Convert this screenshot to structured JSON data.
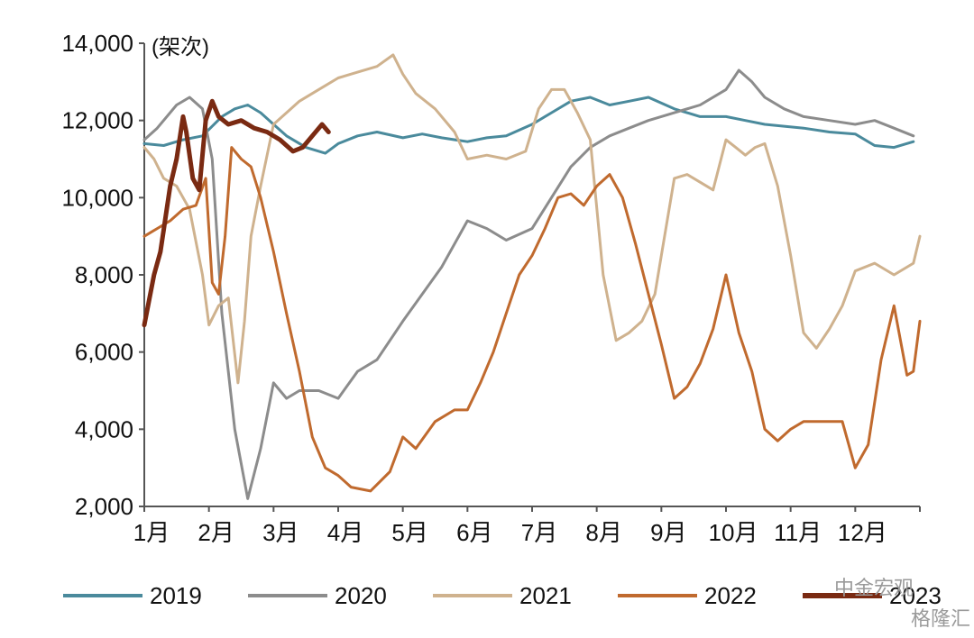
{
  "chart_data": {
    "type": "line",
    "ylabel": "(架次)",
    "ylim": [
      2000,
      14000
    ],
    "yticks": [
      "2,000",
      "4,000",
      "6,000",
      "8,000",
      "10,000",
      "12,000",
      "14,000"
    ],
    "ytick_values": [
      2000,
      4000,
      6000,
      8000,
      10000,
      12000,
      14000
    ],
    "xticks": [
      "1月",
      "2月",
      "3月",
      "4月",
      "5月",
      "6月",
      "7月",
      "8月",
      "9月",
      "10月",
      "11月",
      "12月"
    ],
    "x_unit": "month",
    "xlim": [
      1,
      13
    ],
    "grid": false,
    "legend_position": "bottom",
    "series": [
      {
        "name": "2019",
        "color": "#4a8a9c",
        "width": 3,
        "x": [
          1.0,
          1.3,
          1.6,
          1.9,
          2.2,
          2.4,
          2.6,
          2.8,
          3.0,
          3.2,
          3.5,
          3.8,
          4.0,
          4.3,
          4.6,
          5.0,
          5.3,
          5.6,
          6.0,
          6.3,
          6.6,
          7.0,
          7.3,
          7.6,
          7.9,
          8.2,
          8.5,
          8.8,
          9.2,
          9.6,
          10.0,
          10.3,
          10.6,
          10.9,
          11.2,
          11.6,
          12.0,
          12.3,
          12.6,
          12.9
        ],
        "y": [
          11400,
          11350,
          11500,
          11600,
          12100,
          12300,
          12400,
          12200,
          11900,
          11600,
          11300,
          11150,
          11400,
          11600,
          11700,
          11550,
          11650,
          11550,
          11450,
          11550,
          11600,
          11900,
          12200,
          12500,
          12600,
          12400,
          12500,
          12600,
          12300,
          12100,
          12100,
          12000,
          11900,
          11850,
          11800,
          11700,
          11650,
          11350,
          11300,
          11450
        ]
      },
      {
        "name": "2020",
        "color": "#8c8c8c",
        "width": 3,
        "x": [
          1.0,
          1.2,
          1.5,
          1.7,
          1.9,
          2.05,
          2.2,
          2.4,
          2.6,
          2.8,
          3.0,
          3.2,
          3.4,
          3.7,
          4.0,
          4.3,
          4.6,
          5.0,
          5.3,
          5.6,
          6.0,
          6.3,
          6.6,
          7.0,
          7.3,
          7.6,
          7.9,
          8.2,
          8.5,
          8.8,
          9.2,
          9.6,
          10.0,
          10.2,
          10.4,
          10.6,
          10.9,
          11.2,
          11.6,
          12.0,
          12.3,
          12.6,
          12.9
        ],
        "y": [
          11500,
          11800,
          12400,
          12600,
          12300,
          11000,
          7000,
          4000,
          2200,
          3500,
          5200,
          4800,
          5000,
          5000,
          4800,
          5500,
          5800,
          6800,
          7500,
          8200,
          9400,
          9200,
          8900,
          9200,
          10000,
          10800,
          11300,
          11600,
          11800,
          12000,
          12200,
          12400,
          12800,
          13300,
          13000,
          12600,
          12300,
          12100,
          12000,
          11900,
          12000,
          11800,
          11600
        ]
      },
      {
        "name": "2021",
        "color": "#cfb28e",
        "width": 3,
        "x": [
          1.0,
          1.15,
          1.3,
          1.5,
          1.7,
          1.9,
          2.0,
          2.15,
          2.3,
          2.45,
          2.55,
          2.65,
          2.8,
          3.0,
          3.2,
          3.4,
          3.6,
          3.8,
          4.0,
          4.3,
          4.6,
          4.85,
          5.0,
          5.2,
          5.5,
          5.8,
          6.0,
          6.3,
          6.6,
          6.9,
          7.1,
          7.3,
          7.5,
          7.7,
          7.9,
          8.1,
          8.3,
          8.5,
          8.7,
          8.9,
          9.0,
          9.2,
          9.4,
          9.6,
          9.8,
          10.0,
          10.15,
          10.3,
          10.45,
          10.6,
          10.8,
          11.0,
          11.2,
          11.4,
          11.6,
          11.8,
          12.0,
          12.3,
          12.6,
          12.9,
          13.0
        ],
        "y": [
          11300,
          11000,
          10500,
          10300,
          9700,
          8000,
          6700,
          7200,
          7400,
          5200,
          6800,
          9000,
          10300,
          11900,
          12200,
          12500,
          12700,
          12900,
          13100,
          13250,
          13400,
          13700,
          13200,
          12700,
          12300,
          11700,
          11000,
          11100,
          11000,
          11200,
          12300,
          12800,
          12800,
          12200,
          11500,
          8000,
          6300,
          6500,
          6800,
          7500,
          8500,
          10500,
          10600,
          10400,
          10200,
          11500,
          11300,
          11100,
          11300,
          11400,
          10300,
          8500,
          6500,
          6100,
          6600,
          7200,
          8100,
          8300,
          8000,
          8300,
          9000
        ]
      },
      {
        "name": "2022",
        "color": "#c06a2e",
        "width": 3,
        "x": [
          1.0,
          1.2,
          1.4,
          1.6,
          1.8,
          1.95,
          2.05,
          2.15,
          2.25,
          2.35,
          2.5,
          2.65,
          2.8,
          3.0,
          3.2,
          3.4,
          3.6,
          3.8,
          4.0,
          4.2,
          4.5,
          4.8,
          5.0,
          5.2,
          5.5,
          5.8,
          6.0,
          6.2,
          6.4,
          6.6,
          6.8,
          7.0,
          7.2,
          7.4,
          7.6,
          7.8,
          8.0,
          8.2,
          8.4,
          8.6,
          8.8,
          9.0,
          9.2,
          9.4,
          9.6,
          9.8,
          10.0,
          10.2,
          10.4,
          10.6,
          10.8,
          11.0,
          11.2,
          11.4,
          11.6,
          11.8,
          12.0,
          12.2,
          12.4,
          12.6,
          12.8,
          12.9,
          13.0
        ],
        "y": [
          9000,
          9200,
          9400,
          9700,
          9800,
          10500,
          7800,
          7500,
          9000,
          11300,
          11000,
          10800,
          10000,
          8600,
          7000,
          5500,
          3800,
          3000,
          2800,
          2500,
          2400,
          2900,
          3800,
          3500,
          4200,
          4500,
          4500,
          5200,
          6000,
          7000,
          8000,
          8500,
          9200,
          10000,
          10100,
          9800,
          10300,
          10600,
          10000,
          8800,
          7500,
          6200,
          4800,
          5100,
          5700,
          6600,
          8000,
          6500,
          5500,
          4000,
          3700,
          4000,
          4200,
          4200,
          4200,
          4200,
          3000,
          3600,
          5800,
          7200,
          5400,
          5500,
          6800
        ]
      },
      {
        "name": "2023",
        "color": "#7a2a12",
        "width": 5,
        "x": [
          1.0,
          1.15,
          1.25,
          1.4,
          1.5,
          1.6,
          1.65,
          1.75,
          1.85,
          1.95,
          2.05,
          2.15,
          2.3,
          2.5,
          2.7,
          2.9,
          3.1,
          3.3,
          3.45,
          3.6,
          3.75,
          3.85
        ],
        "y": [
          6700,
          8000,
          8600,
          10300,
          11000,
          12100,
          11700,
          10500,
          10200,
          12000,
          12500,
          12100,
          11900,
          12000,
          11800,
          11700,
          11500,
          11200,
          11300,
          11600,
          11900,
          11700
        ]
      }
    ]
  },
  "watermark": {
    "text1": "中金宏观",
    "text2": "格隆汇"
  }
}
